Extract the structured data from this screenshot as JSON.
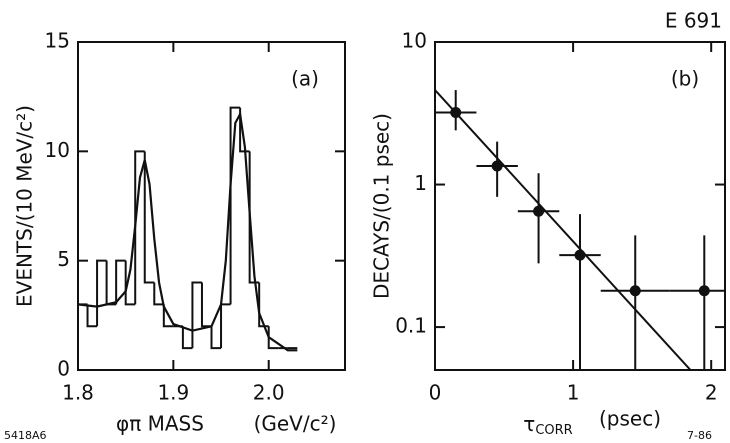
{
  "figure_label": "E 691",
  "corner_left": "5418A6",
  "corner_right": "7-86",
  "chart_data": [
    {
      "type": "histogram",
      "panel_label": "(a)",
      "x_label": "φπ  MASS",
      "x_unit": "(GeV/c²)",
      "y_label": "EVENTS/(10 MeV/c²)",
      "bins": [
        1.8,
        1.81,
        1.82,
        1.83,
        1.84,
        1.85,
        1.86,
        1.87,
        1.88,
        1.89,
        1.9,
        1.91,
        1.92,
        1.93,
        1.94,
        1.95,
        1.96,
        1.97,
        1.98,
        1.99,
        2.0,
        2.01,
        2.02,
        2.03
      ],
      "counts": [
        3,
        2,
        5,
        3,
        5,
        3,
        10,
        4,
        3,
        2,
        2,
        1,
        4,
        2,
        1,
        3,
        12,
        10,
        4,
        2,
        1,
        1,
        1
      ],
      "fit": {
        "x": [
          1.8,
          1.82,
          1.84,
          1.85,
          1.855,
          1.86,
          1.865,
          1.87,
          1.875,
          1.88,
          1.885,
          1.89,
          1.9,
          1.92,
          1.94,
          1.95,
          1.955,
          1.96,
          1.965,
          1.97,
          1.975,
          1.98,
          1.985,
          1.99,
          2.0,
          2.02,
          2.03
        ],
        "y": [
          3.0,
          2.9,
          3.1,
          3.6,
          4.6,
          6.6,
          8.8,
          9.6,
          8.5,
          6.0,
          4.0,
          2.9,
          2.1,
          1.8,
          2.0,
          3.0,
          5.0,
          8.5,
          11.3,
          11.7,
          10.2,
          7.2,
          4.3,
          2.6,
          1.5,
          0.9,
          0.9
        ]
      },
      "color": "#111111",
      "xlim": [
        1.8,
        2.08
      ],
      "ylim": [
        0,
        15
      ],
      "xticks": [
        1.8,
        1.9,
        {
          "value": 2.0,
          "label": "2.0"
        }
      ],
      "yticks": [
        0,
        5,
        10,
        15
      ],
      "grid": false
    },
    {
      "type": "scatter",
      "panel_label": "(b)",
      "x_label": "τ",
      "x_label_sub": "CORR",
      "x_unit": "(psec)",
      "y_label": "DECAYS/(0.1 psec)",
      "x": [
        0.15,
        0.45,
        0.75,
        1.05,
        1.45,
        1.95
      ],
      "xerr": [
        0.15,
        0.15,
        0.15,
        0.15,
        0.25,
        0.25
      ],
      "y": [
        3.2,
        1.35,
        0.65,
        0.32,
        0.18,
        0.18
      ],
      "y_low": [
        2.4,
        0.82,
        0.28,
        0.04,
        0.04,
        0.04
      ],
      "y_high": [
        4.6,
        2.0,
        1.2,
        0.62,
        0.44,
        0.44
      ],
      "fit": {
        "x": [
          0,
          1.85
        ],
        "y": [
          4.6,
          0.05
        ]
      },
      "color": "#111111",
      "log_y": true,
      "xlim": [
        0,
        2.1
      ],
      "ylim": [
        0.05,
        10
      ],
      "xticks": [
        0,
        1,
        2
      ],
      "yticks": [
        0.1,
        1,
        10
      ],
      "grid": false
    }
  ]
}
